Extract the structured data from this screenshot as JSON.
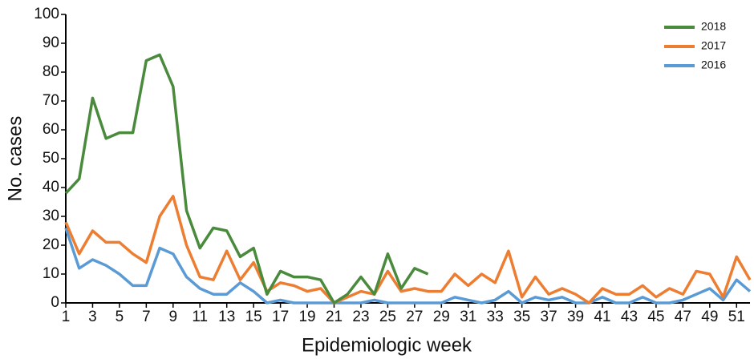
{
  "chart_data": {
    "type": "line",
    "xlabel": "Epidemiologic week",
    "ylabel": "No. cases",
    "x": [
      1,
      2,
      3,
      4,
      5,
      6,
      7,
      8,
      9,
      10,
      11,
      12,
      13,
      14,
      15,
      16,
      17,
      18,
      19,
      20,
      21,
      22,
      23,
      24,
      25,
      26,
      27,
      28,
      29,
      30,
      31,
      32,
      33,
      34,
      35,
      36,
      37,
      38,
      39,
      40,
      41,
      42,
      43,
      44,
      45,
      46,
      47,
      48,
      49,
      50,
      51,
      52
    ],
    "series": [
      {
        "name": "2018",
        "color": "#4a8a3c",
        "values": [
          38,
          43,
          71,
          57,
          59,
          59,
          84,
          86,
          75,
          32,
          19,
          26,
          25,
          16,
          19,
          3,
          11,
          9,
          9,
          8,
          0,
          3,
          9,
          3,
          17,
          5,
          12,
          10,
          null,
          null,
          null,
          null,
          null,
          null,
          null,
          null,
          null,
          null,
          null,
          null,
          null,
          null,
          null,
          null,
          null,
          null,
          null,
          null,
          null,
          null,
          null,
          null
        ]
      },
      {
        "name": "2017",
        "color": "#ed7d31",
        "values": [
          28,
          17,
          25,
          21,
          21,
          17,
          14,
          30,
          37,
          20,
          9,
          8,
          18,
          8,
          14,
          4,
          7,
          6,
          4,
          5,
          0,
          2,
          4,
          3,
          11,
          4,
          5,
          4,
          4,
          10,
          6,
          10,
          7,
          18,
          2,
          9,
          3,
          5,
          3,
          0,
          5,
          3,
          3,
          6,
          2,
          5,
          3,
          11,
          10,
          2,
          16,
          8
        ]
      },
      {
        "name": "2016",
        "color": "#5b9bd5",
        "values": [
          26,
          12,
          15,
          13,
          10,
          6,
          6,
          19,
          17,
          9,
          5,
          3,
          3,
          7,
          4,
          0,
          1,
          0,
          0,
          0,
          0,
          0,
          0,
          1,
          0,
          0,
          0,
          0,
          0,
          2,
          1,
          0,
          1,
          4,
          0,
          2,
          1,
          2,
          0,
          0,
          2,
          0,
          0,
          2,
          0,
          0,
          1,
          3,
          5,
          1,
          8,
          4
        ]
      }
    ],
    "xlim": [
      1,
      52
    ],
    "xticks": [
      1,
      3,
      5,
      7,
      9,
      11,
      13,
      15,
      17,
      19,
      21,
      23,
      25,
      27,
      29,
      31,
      33,
      35,
      37,
      39,
      41,
      43,
      45,
      47,
      49,
      51
    ],
    "ylim": [
      0,
      100
    ],
    "yticks": [
      0,
      10,
      20,
      30,
      40,
      50,
      60,
      70,
      80,
      90,
      100
    ],
    "grid": false,
    "legend": "upper right"
  }
}
